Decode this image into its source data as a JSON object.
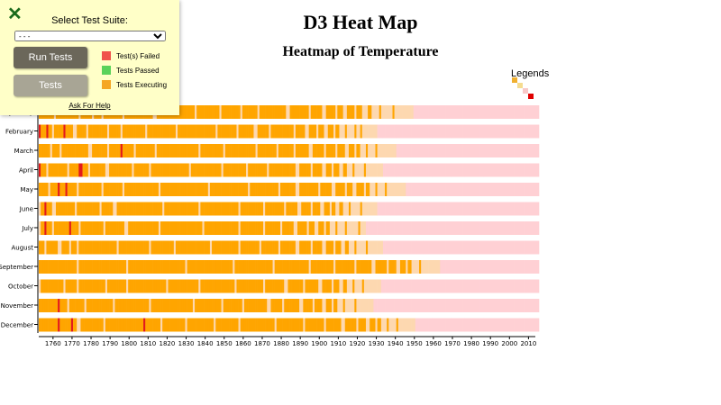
{
  "panel": {
    "select_label": "Select Test Suite:",
    "select_value": "- - -",
    "run_button": "Run Tests",
    "tests_button": "Tests",
    "legend": [
      {
        "label": "Test(s) Failed",
        "color": "#f0524a"
      },
      {
        "label": "Tests Passed",
        "color": "#5ad25a"
      },
      {
        "label": "Tests Executing",
        "color": "#f5a623"
      }
    ],
    "help_link": "Ask For Help"
  },
  "legend_title": "Legends",
  "chart_data": {
    "type": "heatmap",
    "title": "D3 Heat Map",
    "subtitle": "Heatmap of Temperature",
    "x_range": [
      1753,
      2015
    ],
    "x_ticks": [
      1760,
      1770,
      1780,
      1790,
      1800,
      1810,
      1820,
      1830,
      1840,
      1850,
      1860,
      1870,
      1880,
      1890,
      1900,
      1910,
      1920,
      1930,
      1940,
      1950,
      1960,
      1970,
      1980,
      1990,
      2000,
      2010
    ],
    "months": [
      "January",
      "February",
      "March",
      "April",
      "May",
      "June",
      "July",
      "August",
      "September",
      "October",
      "November",
      "December"
    ],
    "colors": {
      "o": "#ffa500",
      "l": "#fdd8b0",
      "p": "#ffd0d4",
      "r": "#e31a1c"
    },
    "legend_colors": [
      "#f0b030",
      "#f5dc90",
      "#f8c8c8",
      "#e00000"
    ],
    "rows": [
      "o8 l1 o12 l1 o6 l1 o4 l1 o10 l1 o15 l2 o20 l1 o12 l1 o10 l1 o8 l1 o14 l2 o10 l1 o6 l2 o5 l1 o3 l2 o4 l1 o3 l3 o2 l4 o1 l6 o1 l10 p16",
      "r1 o3 r1 o2 l1 o5 r1 o4 l2 o5 l1 o10 l1 o6 l1 o12 l1 o15 l1 o20 l1 o10 l1 o8 l2 o6 l1 o12 l1 o5 l2 o4 l1 o3 l2 o3 l1 o2 l3 o1 l4 o1 l2 o1 l8 p18",
      "o6 l1 o4 l1 o14 l2 o8 l1 o6 r1 o6 l1 o10 l1 o22 l1 o12 l1 o16 l1 o10 l1 o8 l1 o7 l2 o6 l1 o5 l1 o4 l2 o3 l1 o2 l3 o1 l4 o1 l10 p16",
      "r1 o3 l1 o10 l1 o5 r2 o3 l1 o8 l2 o12 l1 o8 l1 o20 l1 o16 l1 o12 l1 o10 l1 o14 l2 o6 l1 o5 l2 o3 l1 o3 l2 o2 l3 o1 l5 o1 l9 p17",
      "o5 l1 o4 r1 o3 r1 o5 l1 o12 l1 o10 l1 o18 l1 o25 l1 o20 l1 o15 l1 o8 l2 o10 l1 o6 l2 o5 l1 o3 l2 o4 l1 o2 l3 o1 l4 o1 l10 p14",
      "l1 o2 r1 o3 l2 o10 l1 o12 l1 o6 l2 o24 l1 o18 l1 o20 l1 o12 l1 o10 l1 o6 l2 o5 l1 o4 l2 o3 l1 o2 l2 o2 l3 o1 l5 o1 l8 p16",
      "l1 o2 r1 o3 l1 o8 r1 o4 l1 o12 l1 o10 l2 o16 l1 o22 l1 o18 l1 o12 l1 o8 l1 o6 l2 o5 l1 o3 l2 o3 l1 o2 l3 o1 l4 o1 l6 o1 l3 p15",
      "o3 l1 o6 l2 o4 l1 o3 l1 o20 l1 o16 l1 o12 l1 o18 l1 o14 l1 o10 l1 o9 l1 o8 l2 o6 l1 o5 l2 o4 l1 o3 l2 o2 l3 o1 l5 o1 l8 p16",
      "o20 l1 o25 l1 o30 l1 o24 l1 o20 l1 o18 l1 o12 l1 o10 l1 o8 l2 o6 l1 o4 l2 o3 l1 o2 l4 o1 l10 p18",
      "l1 o12 l1 o6 l1 o14 l1 o10 l1 o20 l1 o16 l1 o18 l1 o14 l1 o10 l2 o8 l1 o7 l2 o5 l1 o3 l2 o2 l3 o1 l4 o1 l9 p16",
      "o10 r1 o4 l1 o8 l1 o14 l1 o18 l1 o22 l1 o14 l1 o10 l1 o12 l2 o6 l1 o8 l2 o5 l1 o4 l2 o3 l1 o2 l3 o1 l5 o1 l9 p16",
      "o10 r1 o6 r1 o2 l2 o12 l1 o20 r1 o8 l1 o12 l1 o14 l1 o12 l1 o18 l1 o14 l1 o10 l1 o8 l2 o6 l1 o4 l2 o3 l1 o2 l3 o1 l4 o1 l9 p15"
    ]
  }
}
